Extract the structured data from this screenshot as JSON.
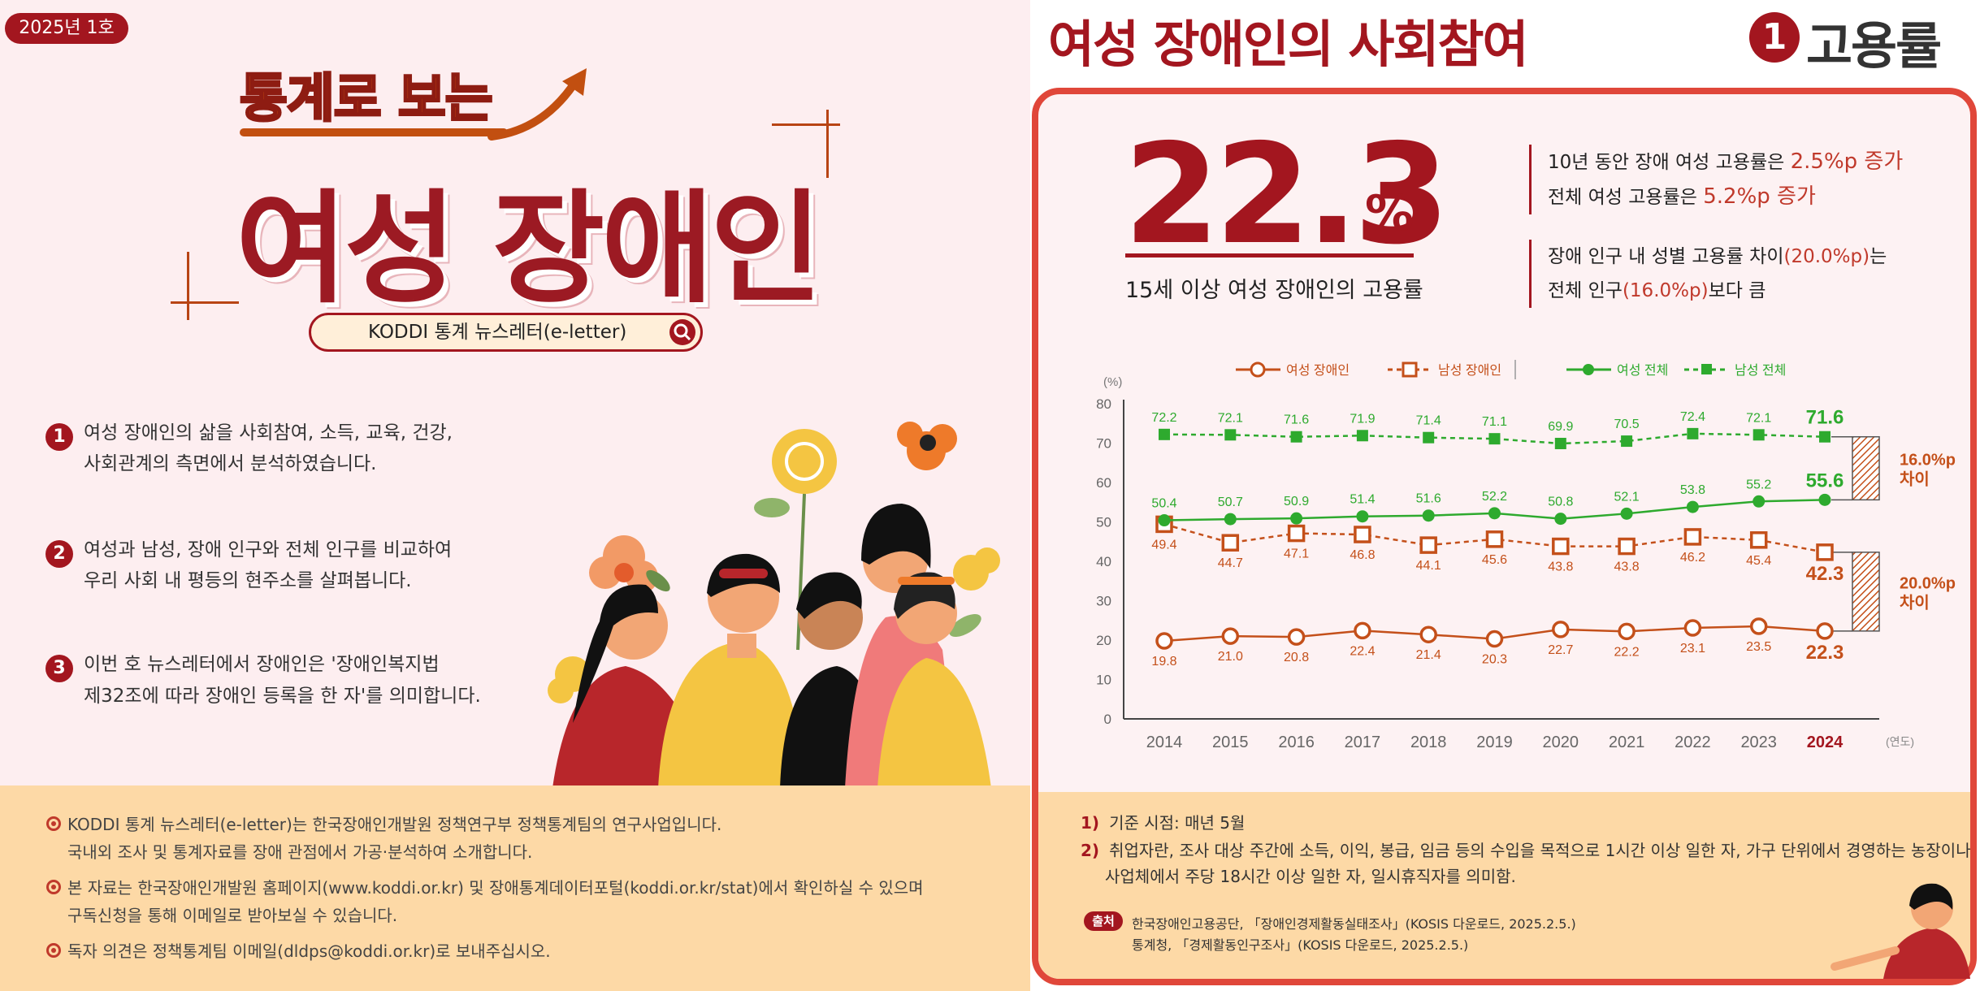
{
  "left": {
    "issue": "2025년 1호",
    "title_small": "통계로 보는",
    "title_big": "여성 장애인",
    "search_label": "KODDI 통계 뉴스레터(e-letter)",
    "points": [
      {
        "num": "1",
        "lines": [
          "여성 장애인의 삶을 사회참여, 소득, 교육, 건강,",
          "사회관계의 측면에서 분석하였습니다."
        ]
      },
      {
        "num": "2",
        "lines": [
          "여성과 남성, 장애 인구와 전체 인구를 비교하여",
          "우리 사회 내 평등의 현주소를 살펴봅니다."
        ]
      },
      {
        "num": "3",
        "lines": [
          "이번 호 뉴스레터에서 장애인은 '장애인복지법",
          "제32조에 따라 장애인 등록을 한 자'를 의미합니다."
        ]
      }
    ],
    "footer": [
      "KODDI 통계 뉴스레터(e-letter)는 한국장애인개발원 정책연구부 정책통계팀의 연구사업입니다.",
      "국내외 조사 및 통계자료를 장애 관점에서 가공·분석하여 소개합니다.",
      "본 자료는 한국장애인개발원 홈페이지(www.koddi.or.kr) 및 장애통계데이터포털(koddi.or.kr/stat)에서 확인하실 수 있으며",
      "구독신청을 통해 이메일로 받아보실 수 있습니다.",
      "독자 의견은 정책통계팀 이메일(dldps@koddi.or.kr)로 보내주십시오."
    ]
  },
  "right": {
    "title": "여성 장애인의 사회참여",
    "sub_num": "1",
    "sub_title": "고용률",
    "big_value": "22.3",
    "big_unit": "%",
    "big_caption": "15세 이상 여성 장애인의 고용률",
    "facts1": {
      "l1a": "10년 동안 장애 여성 고용률은 ",
      "l1b": "2.5%p 증가",
      "l2a": "전체 여성 고용률은 ",
      "l2b": "5.2%p 증가"
    },
    "facts2": {
      "l1a": "장애 인구 내 성별 고용률 차이",
      "l1b": "(20.0%p)",
      "l1c": "는",
      "l2a": "전체 인구",
      "l2b": "(16.0%p)",
      "l2c": "보다 큼"
    },
    "footnotes": [
      {
        "k": "1)",
        "t": "기준 시점: 매년 5월"
      },
      {
        "k": "2)",
        "t": "취업자란, 조사 대상 주간에 소득, 이익, 봉급, 임금 등의 수입을 목적으로 1시간 이상 일한 자, 가구 단위에서 경영하는 농장이나"
      },
      {
        "k": "",
        "t": "사업체에서 주당 18시간 이상 일한 자, 일시휴직자를 의미함."
      }
    ],
    "source_badge": "출처",
    "sources": [
      "한국장애인고용공단, 「장애인경제활동실태조사」(KOSIS 다운로드, 2025.2.5.)",
      "통계청, 「경제활동인구조사」(KOSIS 다운로드, 2025.2.5.)"
    ]
  },
  "chart_data": {
    "type": "line",
    "x": [
      "2014",
      "2015",
      "2016",
      "2017",
      "2018",
      "2019",
      "2020",
      "2021",
      "2022",
      "2023",
      "2024"
    ],
    "x_unit": "(연도)",
    "y_unit": "(%)",
    "ylim": [
      0,
      80
    ],
    "yticks": [
      0,
      10,
      20,
      30,
      40,
      50,
      60,
      70,
      80
    ],
    "series": [
      {
        "name": "여성 장애인",
        "color": "#c4501a",
        "style": "solid",
        "marker": "circle",
        "values": [
          19.8,
          21.0,
          20.8,
          22.4,
          21.4,
          20.3,
          22.7,
          22.2,
          23.1,
          23.5,
          22.3
        ]
      },
      {
        "name": "남성 장애인",
        "color": "#c4501a",
        "style": "dashed",
        "marker": "square",
        "values": [
          49.4,
          44.7,
          47.1,
          46.8,
          44.1,
          45.6,
          43.8,
          43.8,
          46.2,
          45.4,
          42.3
        ]
      },
      {
        "name": "여성 전체",
        "color": "#2eaa2e",
        "style": "solid",
        "marker": "dot",
        "values": [
          50.4,
          50.7,
          50.9,
          51.4,
          51.6,
          52.2,
          50.8,
          52.1,
          53.8,
          55.2,
          55.6
        ]
      },
      {
        "name": "남성 전체",
        "color": "#2eaa2e",
        "style": "dashed",
        "marker": "square-filled",
        "values": [
          72.2,
          72.1,
          71.6,
          71.9,
          71.4,
          71.1,
          69.9,
          70.5,
          72.4,
          72.1,
          71.6
        ]
      }
    ],
    "gap_labels": [
      {
        "lines": [
          "16.0%p",
          "차이"
        ],
        "color": "#c4501a"
      },
      {
        "lines": [
          "20.0%p",
          "차이"
        ],
        "color": "#c4501a"
      }
    ]
  }
}
